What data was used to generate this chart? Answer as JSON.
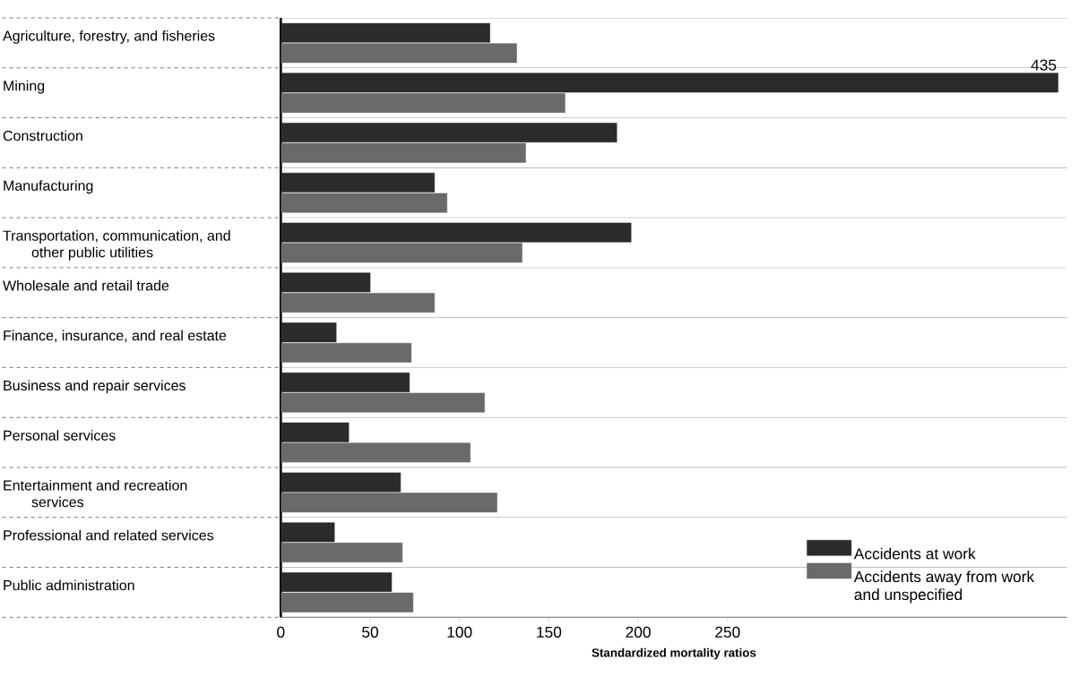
{
  "chart_data": {
    "type": "bar",
    "orientation": "horizontal",
    "xlabel": "Standardized mortality ratios",
    "categories": [
      "Agriculture, forestry, and fisheries",
      "Mining",
      "Construction",
      "Manufacturing",
      "Transportation, communication, and other public utilities",
      "Wholesale and retail trade",
      "Finance, insurance, and real estate",
      "Business and repair services",
      "Personal services",
      "Entertainment and recreation services",
      "Professional and related services",
      "Public administration"
    ],
    "series": [
      {
        "name": "Accidents at work",
        "color": "#2b2b2b",
        "values": [
          117,
          435,
          188,
          86,
          196,
          50,
          31,
          72,
          38,
          67,
          30,
          62
        ],
        "value_labels": [
          null,
          "435",
          null,
          null,
          null,
          null,
          null,
          null,
          null,
          null,
          null,
          null
        ]
      },
      {
        "name": "Accidents away from work and unspecified",
        "color": "#6a6a6a",
        "values": [
          132,
          159,
          137,
          93,
          135,
          86,
          73,
          114,
          106,
          121,
          68,
          74
        ]
      }
    ],
    "xlim": [
      0,
      440
    ],
    "xticks": [
      0,
      50,
      100,
      150,
      200,
      250
    ],
    "legend": "bottom right"
  }
}
